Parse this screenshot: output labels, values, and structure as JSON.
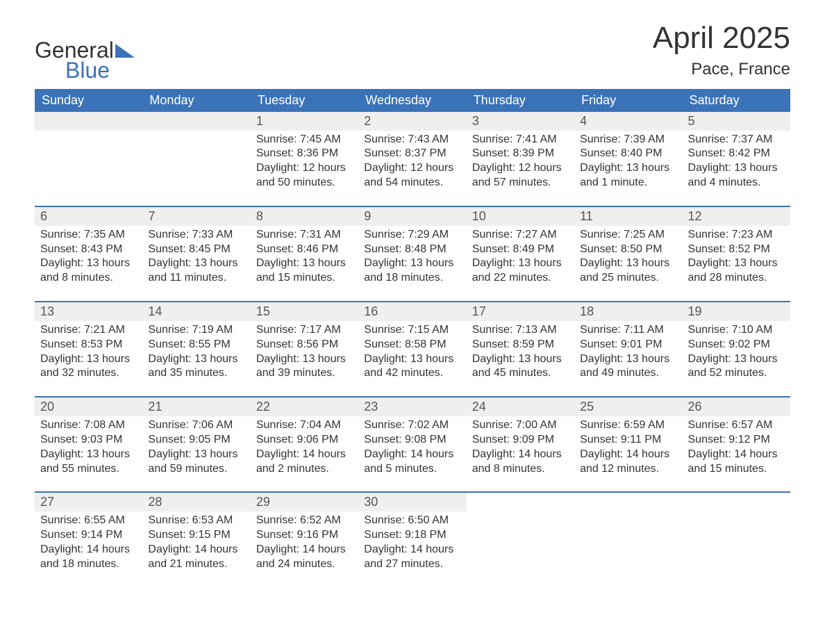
{
  "logo": {
    "word1": "General",
    "word2": "Blue",
    "accent_color": "#3b73b9"
  },
  "title": "April 2025",
  "location": "Pace, France",
  "colors": {
    "header_bg": "#3b73b9",
    "header_text": "#ffffff",
    "daynum_bg": "#efefef",
    "body_text": "#333333",
    "page_bg": "#ffffff",
    "week_border": "#3b73b9"
  },
  "typography": {
    "month_title_fontsize": 44,
    "location_fontsize": 24,
    "day_header_fontsize": 18,
    "daynum_fontsize": 18,
    "body_fontsize": 16,
    "logo_fontsize": 32
  },
  "day_headers": [
    "Sunday",
    "Monday",
    "Tuesday",
    "Wednesday",
    "Thursday",
    "Friday",
    "Saturday"
  ],
  "weeks": [
    [
      {
        "empty": true
      },
      {
        "empty": true
      },
      {
        "n": "1",
        "sunrise": "Sunrise: 7:45 AM",
        "sunset": "Sunset: 8:36 PM",
        "d1": "Daylight: 12 hours",
        "d2": "and 50 minutes."
      },
      {
        "n": "2",
        "sunrise": "Sunrise: 7:43 AM",
        "sunset": "Sunset: 8:37 PM",
        "d1": "Daylight: 12 hours",
        "d2": "and 54 minutes."
      },
      {
        "n": "3",
        "sunrise": "Sunrise: 7:41 AM",
        "sunset": "Sunset: 8:39 PM",
        "d1": "Daylight: 12 hours",
        "d2": "and 57 minutes."
      },
      {
        "n": "4",
        "sunrise": "Sunrise: 7:39 AM",
        "sunset": "Sunset: 8:40 PM",
        "d1": "Daylight: 13 hours",
        "d2": "and 1 minute."
      },
      {
        "n": "5",
        "sunrise": "Sunrise: 7:37 AM",
        "sunset": "Sunset: 8:42 PM",
        "d1": "Daylight: 13 hours",
        "d2": "and 4 minutes."
      }
    ],
    [
      {
        "n": "6",
        "sunrise": "Sunrise: 7:35 AM",
        "sunset": "Sunset: 8:43 PM",
        "d1": "Daylight: 13 hours",
        "d2": "and 8 minutes."
      },
      {
        "n": "7",
        "sunrise": "Sunrise: 7:33 AM",
        "sunset": "Sunset: 8:45 PM",
        "d1": "Daylight: 13 hours",
        "d2": "and 11 minutes."
      },
      {
        "n": "8",
        "sunrise": "Sunrise: 7:31 AM",
        "sunset": "Sunset: 8:46 PM",
        "d1": "Daylight: 13 hours",
        "d2": "and 15 minutes."
      },
      {
        "n": "9",
        "sunrise": "Sunrise: 7:29 AM",
        "sunset": "Sunset: 8:48 PM",
        "d1": "Daylight: 13 hours",
        "d2": "and 18 minutes."
      },
      {
        "n": "10",
        "sunrise": "Sunrise: 7:27 AM",
        "sunset": "Sunset: 8:49 PM",
        "d1": "Daylight: 13 hours",
        "d2": "and 22 minutes."
      },
      {
        "n": "11",
        "sunrise": "Sunrise: 7:25 AM",
        "sunset": "Sunset: 8:50 PM",
        "d1": "Daylight: 13 hours",
        "d2": "and 25 minutes."
      },
      {
        "n": "12",
        "sunrise": "Sunrise: 7:23 AM",
        "sunset": "Sunset: 8:52 PM",
        "d1": "Daylight: 13 hours",
        "d2": "and 28 minutes."
      }
    ],
    [
      {
        "n": "13",
        "sunrise": "Sunrise: 7:21 AM",
        "sunset": "Sunset: 8:53 PM",
        "d1": "Daylight: 13 hours",
        "d2": "and 32 minutes."
      },
      {
        "n": "14",
        "sunrise": "Sunrise: 7:19 AM",
        "sunset": "Sunset: 8:55 PM",
        "d1": "Daylight: 13 hours",
        "d2": "and 35 minutes."
      },
      {
        "n": "15",
        "sunrise": "Sunrise: 7:17 AM",
        "sunset": "Sunset: 8:56 PM",
        "d1": "Daylight: 13 hours",
        "d2": "and 39 minutes."
      },
      {
        "n": "16",
        "sunrise": "Sunrise: 7:15 AM",
        "sunset": "Sunset: 8:58 PM",
        "d1": "Daylight: 13 hours",
        "d2": "and 42 minutes."
      },
      {
        "n": "17",
        "sunrise": "Sunrise: 7:13 AM",
        "sunset": "Sunset: 8:59 PM",
        "d1": "Daylight: 13 hours",
        "d2": "and 45 minutes."
      },
      {
        "n": "18",
        "sunrise": "Sunrise: 7:11 AM",
        "sunset": "Sunset: 9:01 PM",
        "d1": "Daylight: 13 hours",
        "d2": "and 49 minutes."
      },
      {
        "n": "19",
        "sunrise": "Sunrise: 7:10 AM",
        "sunset": "Sunset: 9:02 PM",
        "d1": "Daylight: 13 hours",
        "d2": "and 52 minutes."
      }
    ],
    [
      {
        "n": "20",
        "sunrise": "Sunrise: 7:08 AM",
        "sunset": "Sunset: 9:03 PM",
        "d1": "Daylight: 13 hours",
        "d2": "and 55 minutes."
      },
      {
        "n": "21",
        "sunrise": "Sunrise: 7:06 AM",
        "sunset": "Sunset: 9:05 PM",
        "d1": "Daylight: 13 hours",
        "d2": "and 59 minutes."
      },
      {
        "n": "22",
        "sunrise": "Sunrise: 7:04 AM",
        "sunset": "Sunset: 9:06 PM",
        "d1": "Daylight: 14 hours",
        "d2": "and 2 minutes."
      },
      {
        "n": "23",
        "sunrise": "Sunrise: 7:02 AM",
        "sunset": "Sunset: 9:08 PM",
        "d1": "Daylight: 14 hours",
        "d2": "and 5 minutes."
      },
      {
        "n": "24",
        "sunrise": "Sunrise: 7:00 AM",
        "sunset": "Sunset: 9:09 PM",
        "d1": "Daylight: 14 hours",
        "d2": "and 8 minutes."
      },
      {
        "n": "25",
        "sunrise": "Sunrise: 6:59 AM",
        "sunset": "Sunset: 9:11 PM",
        "d1": "Daylight: 14 hours",
        "d2": "and 12 minutes."
      },
      {
        "n": "26",
        "sunrise": "Sunrise: 6:57 AM",
        "sunset": "Sunset: 9:12 PM",
        "d1": "Daylight: 14 hours",
        "d2": "and 15 minutes."
      }
    ],
    [
      {
        "n": "27",
        "sunrise": "Sunrise: 6:55 AM",
        "sunset": "Sunset: 9:14 PM",
        "d1": "Daylight: 14 hours",
        "d2": "and 18 minutes."
      },
      {
        "n": "28",
        "sunrise": "Sunrise: 6:53 AM",
        "sunset": "Sunset: 9:15 PM",
        "d1": "Daylight: 14 hours",
        "d2": "and 21 minutes."
      },
      {
        "n": "29",
        "sunrise": "Sunrise: 6:52 AM",
        "sunset": "Sunset: 9:16 PM",
        "d1": "Daylight: 14 hours",
        "d2": "and 24 minutes."
      },
      {
        "n": "30",
        "sunrise": "Sunrise: 6:50 AM",
        "sunset": "Sunset: 9:18 PM",
        "d1": "Daylight: 14 hours",
        "d2": "and 27 minutes."
      },
      {
        "empty": true,
        "noshade": true
      },
      {
        "empty": true,
        "noshade": true
      },
      {
        "empty": true,
        "noshade": true
      }
    ]
  ]
}
